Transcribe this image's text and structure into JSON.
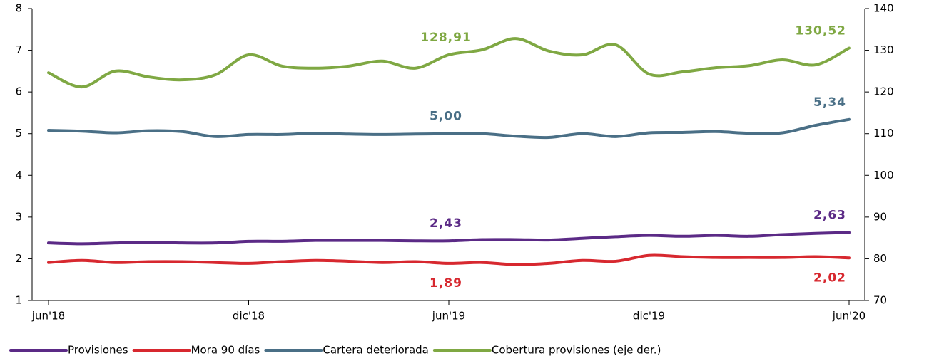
{
  "chart_data": {
    "type": "line",
    "categories": [
      "jun'18",
      null,
      null,
      null,
      null,
      null,
      "dic'18",
      null,
      null,
      null,
      null,
      null,
      "jun'19",
      null,
      null,
      null,
      null,
      null,
      "dic'19",
      null,
      null,
      null,
      null,
      null,
      "jun'20"
    ],
    "series": [
      {
        "name": "Provisiones",
        "color": "#5b2a86",
        "values": [
          2.38,
          2.36,
          2.38,
          2.4,
          2.38,
          2.38,
          2.42,
          2.42,
          2.44,
          2.44,
          2.44,
          2.43,
          2.43,
          2.46,
          2.46,
          2.45,
          2.49,
          2.53,
          2.56,
          2.54,
          2.56,
          2.54,
          2.58,
          2.61,
          2.63
        ],
        "value_labels": [
          null,
          null,
          null,
          null,
          null,
          null,
          null,
          null,
          null,
          null,
          null,
          null,
          "2,43",
          null,
          null,
          null,
          null,
          null,
          null,
          null,
          null,
          null,
          null,
          null,
          "2,63"
        ]
      },
      {
        "name": "Mora 90 días",
        "color": "#d7282f",
        "values": [
          1.91,
          1.96,
          1.91,
          1.93,
          1.93,
          1.91,
          1.89,
          1.93,
          1.96,
          1.94,
          1.91,
          1.93,
          1.89,
          1.91,
          1.86,
          1.89,
          1.96,
          1.94,
          2.08,
          2.05,
          2.03,
          2.03,
          2.03,
          2.05,
          2.02
        ],
        "value_labels": [
          null,
          null,
          null,
          null,
          null,
          null,
          null,
          null,
          null,
          null,
          null,
          null,
          "1,89",
          null,
          null,
          null,
          null,
          null,
          null,
          null,
          null,
          null,
          null,
          null,
          "2,02"
        ]
      },
      {
        "name": "Cartera deteriorada",
        "color": "#4a6f86",
        "values": [
          5.08,
          5.06,
          5.02,
          5.07,
          5.05,
          4.93,
          4.98,
          4.98,
          5.01,
          4.99,
          4.98,
          4.99,
          5.0,
          5.0,
          4.94,
          4.91,
          5.0,
          4.93,
          5.02,
          5.03,
          5.05,
          5.01,
          5.02,
          5.2,
          5.34
        ],
        "value_labels": [
          null,
          null,
          null,
          null,
          null,
          null,
          null,
          null,
          null,
          null,
          null,
          null,
          "5,00",
          null,
          null,
          null,
          null,
          null,
          null,
          null,
          null,
          null,
          null,
          null,
          "5,34"
        ]
      },
      {
        "name": "Cobertura provisiones (eje der.)",
        "color": "#7fa843",
        "axis": "y2",
        "values": [
          124.6,
          121.2,
          125.0,
          123.6,
          122.9,
          124.1,
          128.9,
          126.2,
          125.7,
          126.2,
          127.4,
          125.7,
          128.91,
          130.1,
          132.8,
          129.8,
          128.9,
          131.3,
          124.3,
          124.8,
          125.8,
          126.3,
          127.7,
          126.5,
          130.52
        ],
        "value_labels": [
          null,
          null,
          null,
          null,
          null,
          null,
          null,
          null,
          null,
          null,
          null,
          null,
          "128,91",
          null,
          null,
          null,
          null,
          null,
          null,
          null,
          null,
          null,
          null,
          null,
          "130,52"
        ]
      }
    ],
    "ylim": [
      1,
      8
    ],
    "yticks": [
      1,
      2,
      3,
      4,
      5,
      6,
      7,
      8
    ],
    "y2lim": [
      70,
      140
    ],
    "y2ticks": [
      70,
      80,
      90,
      100,
      110,
      120,
      130,
      140
    ],
    "legend": "bottom"
  }
}
